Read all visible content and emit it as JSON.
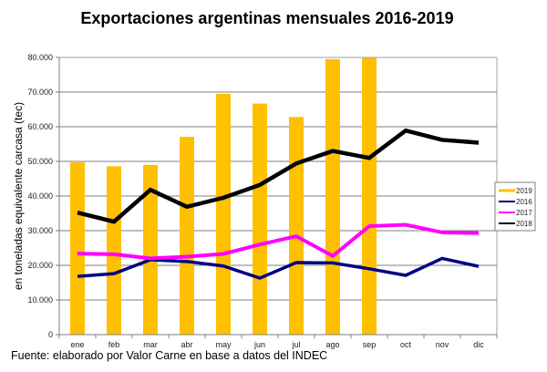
{
  "chart_data": {
    "type": "bar+line",
    "title": "Exportaciones argentinas mensuales 2016-2019",
    "xlabel": "",
    "ylabel": "en toneladas equivalente carcasa (tec)",
    "ylim": [
      0,
      80000
    ],
    "yticks": [
      0,
      10000,
      20000,
      30000,
      40000,
      50000,
      60000,
      70000,
      80000
    ],
    "ytick_labels": [
      "0",
      "10.000",
      "20.000",
      "30.000",
      "40.000",
      "50.000",
      "60.000",
      "70.000",
      "80.000"
    ],
    "grid": true,
    "categories": [
      "ene",
      "feb",
      "mar",
      "abr",
      "may",
      "jun",
      "jul",
      "ago",
      "sep",
      "oct",
      "nov",
      "dic"
    ],
    "series": [
      {
        "name": "2019",
        "kind": "bar",
        "color": "#FFC000",
        "values": [
          49700,
          48600,
          49000,
          57100,
          69500,
          66700,
          62800,
          79500,
          80000,
          null,
          null,
          null
        ]
      },
      {
        "name": "2016",
        "kind": "line",
        "color": "#000080",
        "values": [
          16800,
          17600,
          21600,
          21100,
          19800,
          16300,
          20800,
          20700,
          19000,
          17100,
          22000,
          19700
        ]
      },
      {
        "name": "2017",
        "kind": "line",
        "color": "#FF00FF",
        "values": [
          23400,
          23200,
          22000,
          22500,
          23300,
          26000,
          28400,
          22700,
          31300,
          31700,
          29500,
          29300
        ]
      },
      {
        "name": "2018",
        "kind": "line",
        "color": "#000000",
        "values": [
          35200,
          32600,
          41800,
          36900,
          39500,
          43200,
          49400,
          53000,
          51000,
          58900,
          56200,
          55400
        ]
      }
    ],
    "legend": {
      "position": "right",
      "order": [
        "2019",
        "2016",
        "2017",
        "2018"
      ]
    }
  },
  "source": "Fuente: elaborado por  Valor Carne en base a datos del INDEC"
}
